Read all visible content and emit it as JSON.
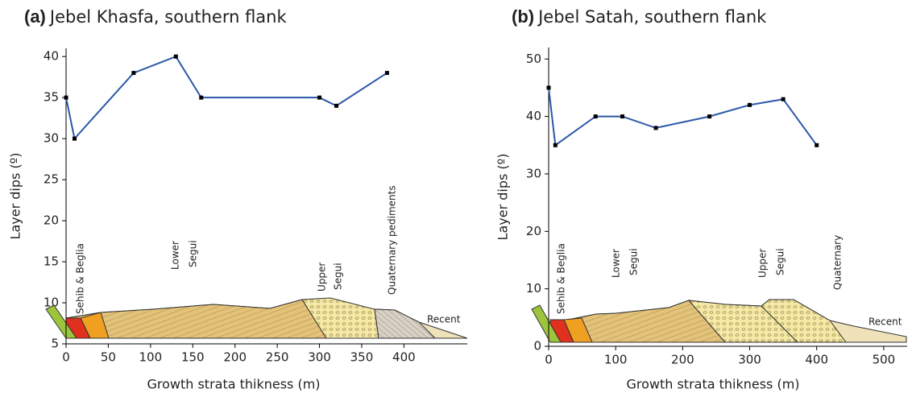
{
  "chart_data": [
    {
      "type": "line",
      "label": "(a)",
      "title": "Jebel Khasfa, southern flank",
      "x_label": "Growth strata thikness (m)",
      "y_label": "Layer dips (º)",
      "x": [
        0,
        10,
        80,
        130,
        160,
        300,
        320,
        380
      ],
      "series": [
        {
          "color": "#2b57a8",
          "values": [
            35,
            30,
            38,
            40,
            35,
            35,
            34,
            38
          ]
        }
      ],
      "xlim": [
        0,
        475
      ],
      "ylim": [
        5,
        41
      ],
      "xticks": [
        0,
        50,
        100,
        150,
        200,
        250,
        300,
        350,
        400
      ],
      "yticks": [
        5,
        10,
        15,
        20,
        25,
        30,
        35,
        40
      ],
      "annotations": [
        [
          "Sehib & Beglia"
        ],
        [
          "Lower",
          "Segui"
        ],
        [
          "Upper",
          "Segui"
        ],
        [
          "Quaternary pediments"
        ],
        [
          "Recent"
        ]
      ]
    },
    {
      "type": "line",
      "label": "(b)",
      "title": "Jebel Satah, southern flank",
      "x_label": "Growth strata thikness (m)",
      "y_label": "Layer dips (º)",
      "x": [
        0,
        10,
        70,
        110,
        160,
        240,
        300,
        350,
        400
      ],
      "series": [
        {
          "color": "#2b57a8",
          "values": [
            45,
            35,
            40,
            40,
            38,
            40,
            42,
            43,
            35
          ]
        }
      ],
      "xlim": [
        0,
        535
      ],
      "ylim": [
        0,
        52
      ],
      "xticks": [
        0,
        100,
        200,
        300,
        400,
        500
      ],
      "yticks": [
        0,
        10,
        20,
        30,
        40,
        50
      ],
      "annotations": [
        [
          "Sehib & Beglia"
        ],
        [
          "Lower",
          "Segui"
        ],
        [
          "Upper",
          "Segui"
        ],
        [
          "Quaternary"
        ],
        [
          "Recent"
        ]
      ]
    }
  ]
}
